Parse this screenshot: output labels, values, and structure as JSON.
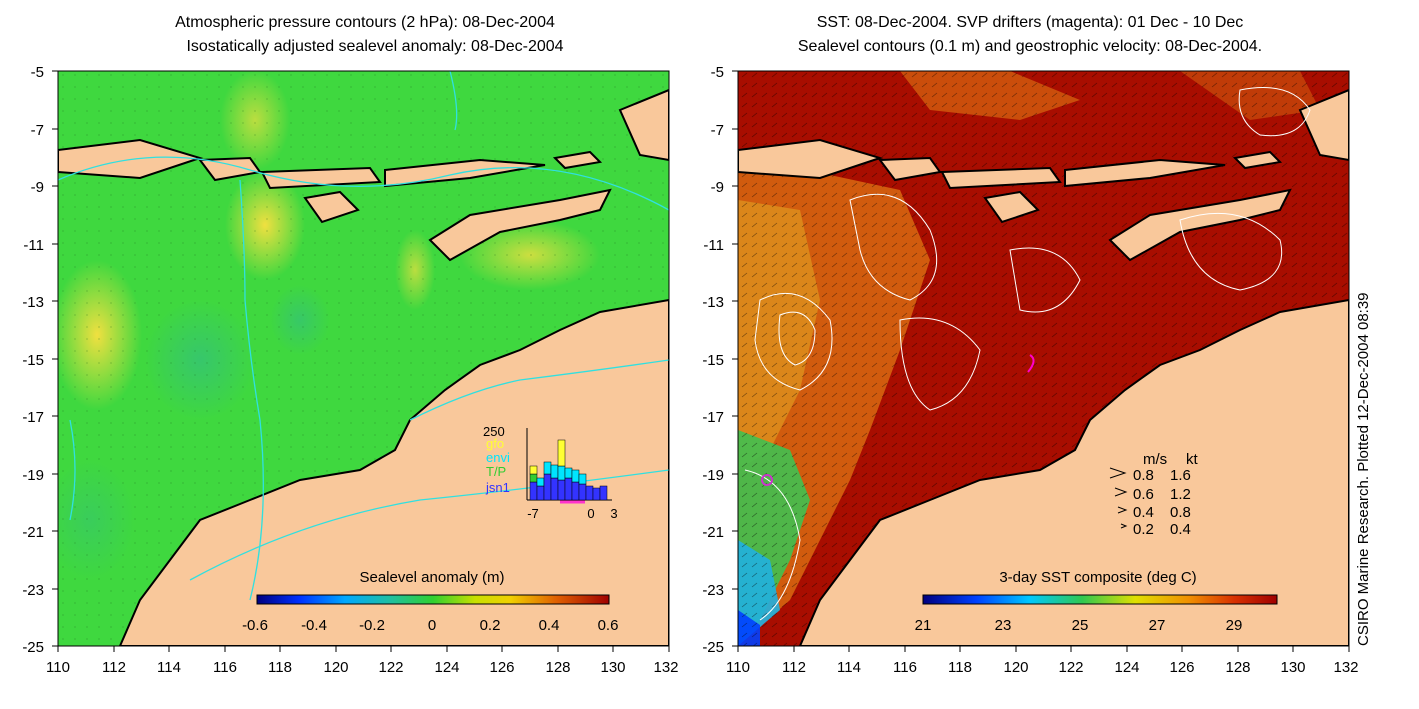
{
  "left_panel": {
    "title_line1": "Atmospheric pressure contours (2 hPa): 08-Dec-2004",
    "title_line2": "Isostatically adjusted sealevel anomaly: 08-Dec-2004",
    "colorbar_label": "Sealevel anomaly (m)",
    "colorbar_ticks": [
      "-0.6",
      "-0.4",
      "-0.2",
      "0",
      "0.2",
      "0.4",
      "0.6"
    ],
    "histogram": {
      "ymax_label": "250",
      "legend": [
        "gfo",
        "envi",
        "T/P",
        "jsn1"
      ],
      "legend_colors": [
        "#ffff33",
        "#00e5ff",
        "#33cc33",
        "#3333ff"
      ],
      "x_ticks": [
        "-7",
        "0",
        "3"
      ]
    }
  },
  "right_panel": {
    "title_line1": "SST: 08-Dec-2004. SVP drifters (magenta): 01 Dec - 10 Dec",
    "title_line2": "Sealevel contours (0.1 m) and geostrophic velocity: 08-Dec-2004.",
    "colorbar_label": "3-day SST composite (deg C)",
    "colorbar_ticks": [
      "21",
      "23",
      "25",
      "27",
      "29"
    ],
    "velocity_key": {
      "header_ms": "m/s",
      "header_kt": "kt",
      "rows": [
        {
          "ms": "0.8",
          "kt": "1.6"
        },
        {
          "ms": "0.6",
          "kt": "1.2"
        },
        {
          "ms": "0.4",
          "kt": "0.8"
        },
        {
          "ms": "0.2",
          "kt": "0.4"
        }
      ]
    }
  },
  "axes": {
    "lat_ticks": [
      "-5",
      "-7",
      "-9",
      "-11",
      "-13",
      "-15",
      "-17",
      "-19",
      "-21",
      "-23",
      "-25"
    ],
    "lon_ticks": [
      "110",
      "112",
      "114",
      "116",
      "118",
      "120",
      "122",
      "124",
      "126",
      "128",
      "130",
      "132"
    ]
  },
  "credit": "CSIRO Marine Research. Plotted 12-Dec-2004 08:39",
  "colors": {
    "land": "#f9c89b",
    "sla_base": "#3fd83f",
    "sst_warm": "#a80d00"
  }
}
